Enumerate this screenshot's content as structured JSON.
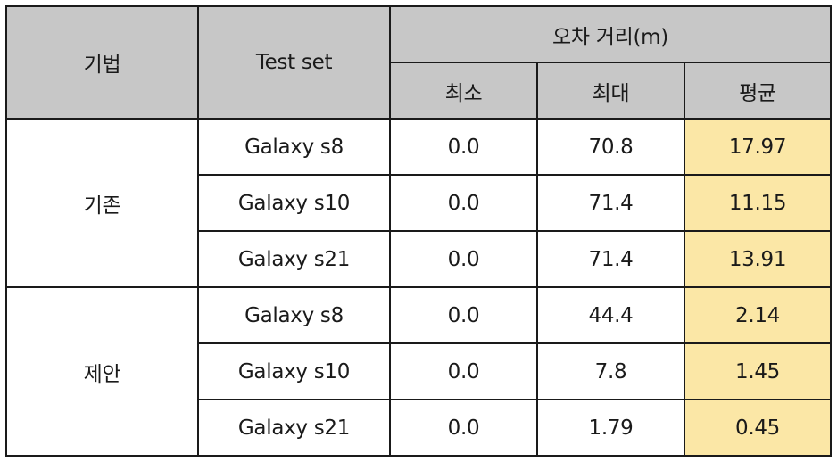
{
  "headers": {
    "method": "기법",
    "test_set": "Test set",
    "error_distance": "오차 거리(m)",
    "min": "최소",
    "max": "최대",
    "avg": "평균"
  },
  "groups": [
    {
      "method": "기존",
      "rows": [
        {
          "test_set": "Galaxy s8",
          "min": "0.0",
          "max": "70.8",
          "avg": "17.97"
        },
        {
          "test_set": "Galaxy s10",
          "min": "0.0",
          "max": "71.4",
          "avg": "11.15"
        },
        {
          "test_set": "Galaxy s21",
          "min": "0.0",
          "max": "71.4",
          "avg": "13.91"
        }
      ]
    },
    {
      "method": "제안",
      "rows": [
        {
          "test_set": "Galaxy s8",
          "min": "0.0",
          "max": "44.4",
          "avg": "2.14"
        },
        {
          "test_set": "Galaxy s10",
          "min": "0.0",
          "max": "7.8",
          "avg": "1.45"
        },
        {
          "test_set": "Galaxy s21",
          "min": "0.0",
          "max": "1.79",
          "avg": "0.45"
        }
      ]
    }
  ],
  "colors": {
    "header_bg": "#c7c7c7",
    "avg_highlight": "#fbe7a6",
    "border": "#1a1a1a"
  }
}
